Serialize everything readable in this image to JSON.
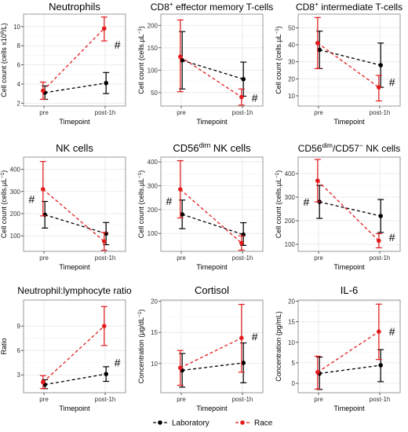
{
  "colors": {
    "laboratory": "#000000",
    "race": "#e41a1c",
    "grid": "#e6e6e6",
    "panel_border": "#7f7f7f"
  },
  "legend": {
    "placement": "bottom",
    "items": [
      {
        "key": "laboratory",
        "label": "Laboratory"
      },
      {
        "key": "race",
        "label": "Race"
      }
    ]
  },
  "chart_data": [
    {
      "type": "line",
      "title": "Neutrophils",
      "title_parts": [
        {
          "t": "Neutrophils"
        }
      ],
      "ylabel": "Cell count (cells x10⁹/L)",
      "ylabel_parts": [
        {
          "t": "Cell count (cells x10"
        },
        {
          "t": "9",
          "sup": true
        },
        {
          "t": "/L)"
        }
      ],
      "xlabel": "Timepoint",
      "categories": [
        "pre",
        "post-1h"
      ],
      "ylim": [
        1.7,
        11.3
      ],
      "yticks": [
        2,
        4,
        6,
        8,
        10
      ],
      "annotations": [
        {
          "text": "#",
          "x": 1.2,
          "y": 8.1
        }
      ],
      "series": [
        {
          "name": "Laboratory",
          "mean": [
            3.1,
            4.1
          ],
          "lower": [
            2.4,
            3.0
          ],
          "upper": [
            3.8,
            5.2
          ]
        },
        {
          "name": "Race",
          "mean": [
            3.3,
            9.8
          ],
          "lower": [
            2.4,
            8.5
          ],
          "upper": [
            4.2,
            11.0
          ]
        }
      ]
    },
    {
      "type": "line",
      "title": "CD8⁺ effector memory T-cells",
      "title_parts": [
        {
          "t": "CD8"
        },
        {
          "t": "+",
          "sup": true
        },
        {
          "t": " effector memory T-cells"
        }
      ],
      "ylabel": "Cell count (cells.µL⁻¹)",
      "ylabel_parts": [
        {
          "t": "Cell count (cells.µL"
        },
        {
          "t": "−1",
          "sup": true
        },
        {
          "t": ")"
        }
      ],
      "xlabel": "Timepoint",
      "categories": [
        "pre",
        "post-1h"
      ],
      "ylim": [
        20,
        225
      ],
      "yticks": [
        50,
        100,
        150,
        200
      ],
      "annotations": [
        {
          "text": "#",
          "x": 1.2,
          "y": 38
        }
      ],
      "series": [
        {
          "name": "Laboratory",
          "mean": [
            122,
            80
          ],
          "lower": [
            58,
            42
          ],
          "upper": [
            186,
            118
          ]
        },
        {
          "name": "Race",
          "mean": [
            130,
            40
          ],
          "lower": [
            52,
            22
          ],
          "upper": [
            212,
            58
          ]
        }
      ]
    },
    {
      "type": "line",
      "title": "CD8⁺ intermediate T-cells",
      "title_parts": [
        {
          "t": "CD8"
        },
        {
          "t": "+",
          "sup": true
        },
        {
          "t": " intermediate T-cells"
        }
      ],
      "ylabel": "Cell count (cells.µL⁻¹)",
      "ylabel_parts": [
        {
          "t": "Cell count (cells.µL"
        },
        {
          "t": "−1",
          "sup": true
        },
        {
          "t": ")"
        }
      ],
      "xlabel": "Timepoint",
      "categories": [
        "pre",
        "post-1h"
      ],
      "ylim": [
        4,
        58
      ],
      "yticks": [
        10,
        20,
        30,
        40,
        50
      ],
      "annotations": [
        {
          "text": "#",
          "x": 1.2,
          "y": 18
        }
      ],
      "series": [
        {
          "name": "Laboratory",
          "mean": [
            37,
            28
          ],
          "lower": [
            26,
            15
          ],
          "upper": [
            48,
            41
          ]
        },
        {
          "name": "Race",
          "mean": [
            41,
            15
          ],
          "lower": [
            26,
            7
          ],
          "upper": [
            56,
            22
          ]
        }
      ]
    },
    {
      "type": "line",
      "title": "NK cells",
      "title_parts": [
        {
          "t": "NK cells"
        }
      ],
      "ylabel": "Cell count (cells.µL⁻¹)",
      "ylabel_parts": [
        {
          "t": "Cell count (cells.µL"
        },
        {
          "t": "−1",
          "sup": true
        },
        {
          "t": ")"
        }
      ],
      "xlabel": "Timepoint",
      "categories": [
        "pre",
        "post-1h"
      ],
      "ylim": [
        30,
        455
      ],
      "yticks": [
        100,
        200,
        300,
        400
      ],
      "annotations": [
        {
          "text": "#",
          "x": -0.2,
          "y": 265
        }
      ],
      "series": [
        {
          "name": "Laboratory",
          "mean": [
            195,
            110
          ],
          "lower": [
            135,
            60
          ],
          "upper": [
            255,
            160
          ]
        },
        {
          "name": "Race",
          "mean": [
            310,
            75
          ],
          "lower": [
            190,
            35
          ],
          "upper": [
            435,
            115
          ]
        }
      ]
    },
    {
      "type": "line",
      "title": "CD56ᵈⁱᵐ NK cells",
      "title_parts": [
        {
          "t": "CD56"
        },
        {
          "t": "dim",
          "sup": true
        },
        {
          "t": " NK cells"
        }
      ],
      "ylabel": "Cell count (cells.µL⁻¹)",
      "ylabel_parts": [
        {
          "t": "Cell count (cells.µL"
        },
        {
          "t": "−1",
          "sup": true
        },
        {
          "t": ")"
        }
      ],
      "xlabel": "Timepoint",
      "categories": [
        "pre",
        "post-1h"
      ],
      "ylim": [
        25,
        420
      ],
      "yticks": [
        100,
        200,
        300,
        400
      ],
      "annotations": [
        {
          "text": "#",
          "x": -0.2,
          "y": 235
        }
      ],
      "series": [
        {
          "name": "Laboratory",
          "mean": [
            180,
            95
          ],
          "lower": [
            120,
            50
          ],
          "upper": [
            240,
            145
          ]
        },
        {
          "name": "Race",
          "mean": [
            285,
            60
          ],
          "lower": [
            165,
            30
          ],
          "upper": [
            405,
            90
          ]
        }
      ]
    },
    {
      "type": "line",
      "title": "CD56ᵈⁱᵐ/CD57⁻ NK cells",
      "title_parts": [
        {
          "t": "CD56"
        },
        {
          "t": "dim",
          "sup": true
        },
        {
          "t": "/CD57"
        },
        {
          "t": "−",
          "sup": true
        },
        {
          "t": " NK cells"
        }
      ],
      "ylabel": "Cell count (cells.µL⁻¹)",
      "ylabel_parts": [
        {
          "t": "Cell count (cells.µL"
        },
        {
          "t": "−1",
          "sup": true
        },
        {
          "t": ")"
        }
      ],
      "xlabel": "Timepoint",
      "categories": [
        "pre",
        "post-1h"
      ],
      "ylim": [
        70,
        470
      ],
      "yticks": [
        100,
        200,
        300,
        400
      ],
      "annotations": [
        {
          "text": "#",
          "x": -0.2,
          "y": 280
        },
        {
          "text": "#",
          "x": 1.2,
          "y": 130
        }
      ],
      "series": [
        {
          "name": "Laboratory",
          "mean": [
            280,
            220
          ],
          "lower": [
            210,
            150
          ],
          "upper": [
            350,
            290
          ]
        },
        {
          "name": "Race",
          "mean": [
            370,
            115
          ],
          "lower": [
            280,
            85
          ],
          "upper": [
            460,
            145
          ]
        }
      ]
    },
    {
      "type": "line",
      "title": "Neutrophil:lymphocyte ratio",
      "title_parts": [
        {
          "t": "Neutrophil:lymphocyte ratio"
        }
      ],
      "ylabel": "Ratio",
      "ylabel_parts": [
        {
          "t": "Ratio"
        }
      ],
      "xlabel": "Timepoint",
      "categories": [
        "pre",
        "post-1h"
      ],
      "ylim": [
        0.8,
        12.2
      ],
      "yticks": [
        3,
        6,
        9
      ],
      "annotations": [
        {
          "text": "#",
          "x": 1.2,
          "y": 4.5
        }
      ],
      "series": [
        {
          "name": "Laboratory",
          "mean": [
            1.8,
            3.1
          ],
          "lower": [
            1.3,
            2.2
          ],
          "upper": [
            2.4,
            4.0
          ]
        },
        {
          "name": "Race",
          "mean": [
            2.1,
            9.0
          ],
          "lower": [
            1.3,
            6.6
          ],
          "upper": [
            2.9,
            11.4
          ]
        }
      ]
    },
    {
      "type": "line",
      "title": "Cortisol",
      "title_parts": [
        {
          "t": "Cortisol"
        }
      ],
      "ylabel": "Concentration (µg/dL⁻¹)",
      "ylabel_parts": [
        {
          "t": "Concentration (µg/dL"
        },
        {
          "t": "−1",
          "sup": true
        },
        {
          "t": ")"
        }
      ],
      "xlabel": "Timepoint",
      "categories": [
        "pre",
        "post-1h"
      ],
      "ylim": [
        5.3,
        20.2
      ],
      "yticks": [
        10,
        15,
        20
      ],
      "annotations": [
        {
          "text": "#",
          "x": 1.2,
          "y": 14.3
        }
      ],
      "series": [
        {
          "name": "Laboratory",
          "mean": [
            8.9,
            10.1
          ],
          "lower": [
            6.2,
            6.9
          ],
          "upper": [
            11.6,
            13.3
          ]
        },
        {
          "name": "Race",
          "mean": [
            9.3,
            14.1
          ],
          "lower": [
            6.5,
            8.6
          ],
          "upper": [
            12.1,
            19.5
          ]
        }
      ]
    },
    {
      "type": "line",
      "title": "IL-6",
      "title_parts": [
        {
          "t": "IL-6"
        }
      ],
      "ylabel": "Concentration (pg/mL)",
      "ylabel_parts": [
        {
          "t": "Concentration (pg/mL)"
        }
      ],
      "xlabel": "Timepoint",
      "categories": [
        "pre",
        "post-1h"
      ],
      "ylim": [
        -2.3,
        20.3
      ],
      "yticks": [
        0,
        5,
        10,
        15,
        20
      ],
      "annotations": [
        {
          "text": "#",
          "x": 1.2,
          "y": 12.6
        }
      ],
      "series": [
        {
          "name": "Laboratory",
          "mean": [
            2.4,
            4.4
          ],
          "lower": [
            -1.5,
            0.4
          ],
          "upper": [
            6.4,
            8.2
          ]
        },
        {
          "name": "Race",
          "mean": [
            2.7,
            12.6
          ],
          "lower": [
            -1.4,
            5.8
          ],
          "upper": [
            6.6,
            19.3
          ]
        }
      ]
    }
  ]
}
